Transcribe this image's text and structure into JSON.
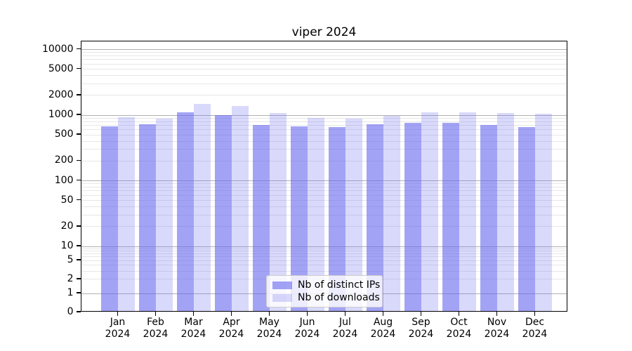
{
  "title": "viper 2024",
  "chart_data": {
    "type": "bar",
    "title": "viper 2024",
    "categories": [
      "Jan",
      "Feb",
      "Mar",
      "Apr",
      "May",
      "Jun",
      "Jul",
      "Aug",
      "Sep",
      "Oct",
      "Nov",
      "Dec"
    ],
    "year": "2024",
    "series": [
      {
        "name": "Nb of distinct IPs",
        "fill": "rgba(102,102,238,0.6)",
        "values": [
          640,
          690,
          1050,
          950,
          680,
          645,
          620,
          695,
          730,
          730,
          670,
          630
        ]
      },
      {
        "name": "Nb of downloads",
        "fill": "rgba(102,102,238,0.25)",
        "values": [
          875,
          845,
          1400,
          1300,
          1020,
          855,
          850,
          940,
          1050,
          1060,
          1030,
          1000
        ]
      }
    ],
    "yscale": "symlog",
    "yticks": [
      0,
      1,
      2,
      5,
      10,
      20,
      50,
      100,
      200,
      500,
      1000,
      2000,
      5000,
      10000
    ],
    "ylim": [
      0,
      13000
    ],
    "grid": true,
    "legend_position": "lower-center",
    "colors": {
      "bar_dark_on_white": "#a3a3f1",
      "bar_light_on_white": "#d9d9fa",
      "grid_major": "#b0b0b0",
      "grid_minor": "#e7e7e7"
    }
  }
}
